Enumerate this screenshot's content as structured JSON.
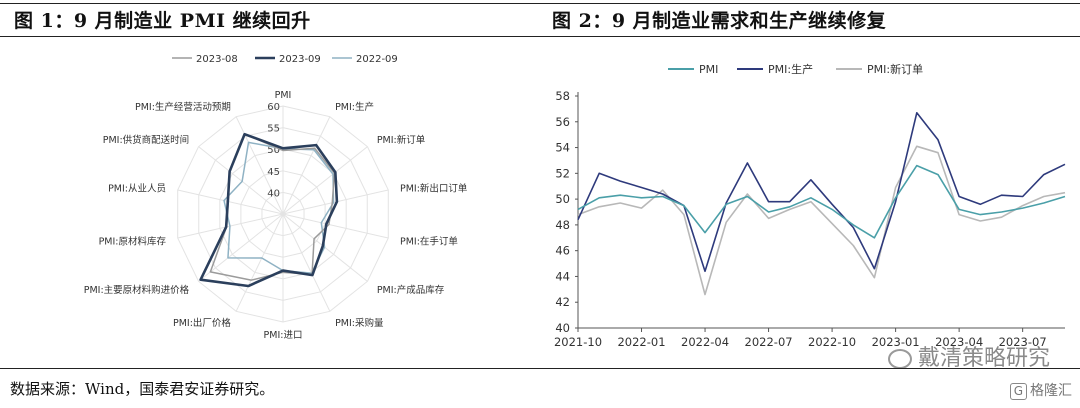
{
  "titles": {
    "left": "图 1：9 月制造业 PMI 继续回升",
    "right": "图 2：9 月制造业需求和生产继续修复"
  },
  "source": "数据来源：Wind，国泰君安证券研究。",
  "watermark": "戴清策略研究",
  "logo": {
    "mark": "G",
    "text": "格隆汇"
  },
  "chart_data": [
    {
      "type": "radar",
      "title": "",
      "axes": [
        "PMI",
        "PMI:生产",
        "PMI:新订单",
        "PMI:新出口订单",
        "PMI:在手订单",
        "PMI:产成品库存",
        "PMI:采购量",
        "PMI:进口",
        "PMI:出厂价格",
        "PMI:主要原材料购进价格",
        "PMI:原材料库存",
        "PMI:从业人员",
        "PMI:供货商配送时间",
        "PMI:生产经营活动预期"
      ],
      "ticks": [
        40,
        45,
        50,
        55,
        60
      ],
      "range": [
        35,
        60
      ],
      "series": [
        {
          "name": "2023-08",
          "color": "#9b9b9b",
          "values": [
            49.7,
            51.9,
            50.2,
            46.7,
            45.9,
            44.2,
            50.5,
            48.5,
            52.0,
            56.5,
            48.4,
            48.0,
            50.8,
            55.6
          ]
        },
        {
          "name": "2023-09",
          "color": "#2b3f5c",
          "values": [
            50.2,
            52.7,
            50.5,
            47.8,
            45.3,
            46.8,
            50.7,
            48.1,
            53.5,
            59.4,
            48.5,
            48.1,
            50.8,
            55.5
          ]
        },
        {
          "name": "2022-09",
          "color": "#8fb2c4",
          "values": [
            50.1,
            51.5,
            49.8,
            47.0,
            44.1,
            47.3,
            50.2,
            48.1,
            46.3,
            51.3,
            47.6,
            49.0,
            47.1,
            53.4
          ]
        }
      ]
    },
    {
      "type": "line",
      "title": "",
      "x": [
        "2021-10",
        "2021-11",
        "2021-12",
        "2022-01",
        "2022-02",
        "2022-03",
        "2022-04",
        "2022-05",
        "2022-06",
        "2022-07",
        "2022-08",
        "2022-09",
        "2022-10",
        "2022-11",
        "2022-12",
        "2023-01",
        "2023-02",
        "2023-03",
        "2023-04",
        "2023-05",
        "2023-06",
        "2023-07",
        "2023-08",
        "2023-09"
      ],
      "xticks": [
        "2021-10",
        "2022-01",
        "2022-04",
        "2022-07",
        "2022-10",
        "2023-01",
        "2023-04",
        "2023-07"
      ],
      "ylim": [
        40,
        58
      ],
      "yticks": [
        40,
        42,
        44,
        46,
        48,
        50,
        52,
        54,
        56,
        58
      ],
      "series": [
        {
          "name": "PMI",
          "color": "#4a9fa8",
          "values": [
            49.2,
            50.1,
            50.3,
            50.1,
            50.2,
            49.5,
            47.4,
            49.6,
            50.2,
            49.0,
            49.4,
            50.1,
            49.2,
            48.0,
            47.0,
            50.1,
            52.6,
            51.9,
            49.2,
            48.8,
            49.0,
            49.3,
            49.7,
            50.2
          ]
        },
        {
          "name": "PMI:生产",
          "color": "#2e3a7c",
          "values": [
            48.4,
            52.0,
            51.4,
            50.9,
            50.4,
            49.5,
            44.4,
            49.7,
            52.8,
            49.8,
            49.8,
            51.5,
            49.6,
            47.8,
            44.6,
            49.8,
            56.7,
            54.6,
            50.2,
            49.6,
            50.3,
            50.2,
            51.9,
            52.7
          ]
        },
        {
          "name": "PMI:新订单",
          "color": "#b8b8b8",
          "values": [
            48.8,
            49.4,
            49.7,
            49.3,
            50.7,
            48.8,
            42.6,
            48.2,
            50.4,
            48.5,
            49.2,
            49.8,
            48.1,
            46.4,
            43.9,
            50.9,
            54.1,
            53.6,
            48.8,
            48.3,
            48.6,
            49.5,
            50.2,
            50.5
          ]
        }
      ]
    }
  ]
}
